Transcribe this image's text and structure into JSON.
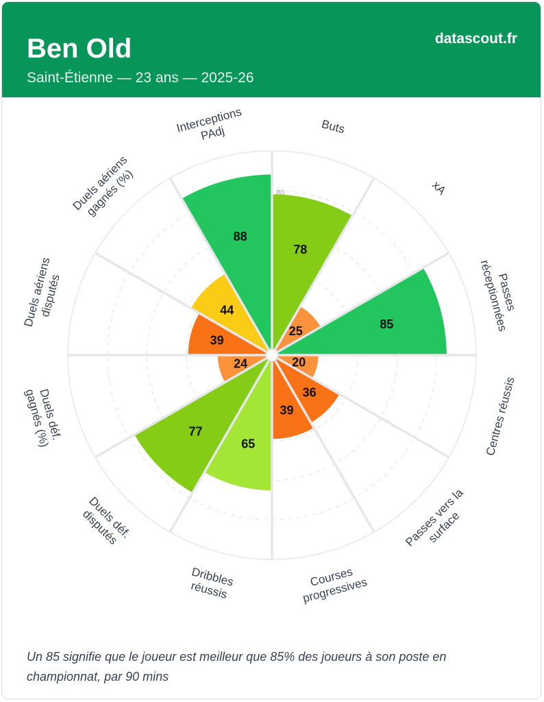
{
  "header": {
    "player_name": "Ben Old",
    "subtitle": "Saint-Étienne — 23 ans — 2025-26",
    "brand": "datascout.fr"
  },
  "chart_data": {
    "type": "radial-bar",
    "rmax": 100,
    "ring_label": "80",
    "gridlines": [
      20,
      40,
      60,
      80
    ],
    "categories": [
      {
        "label": [
          "Buts"
        ],
        "value": 78
      },
      {
        "label": [
          "xA"
        ],
        "value": 25
      },
      {
        "label": [
          "Passes",
          "réceptionnées"
        ],
        "value": 85
      },
      {
        "label": [
          "Centres réussis"
        ],
        "value": 20
      },
      {
        "label": [
          "Passes vers la",
          "surface"
        ],
        "value": 36
      },
      {
        "label": [
          "Courses",
          "progressives"
        ],
        "value": 39
      },
      {
        "label": [
          "Dribbles",
          "réussis"
        ],
        "value": 65
      },
      {
        "label": [
          "Duels déf.",
          "disputés"
        ],
        "value": 77
      },
      {
        "label": [
          "Duels déf.",
          "gagnés (%)"
        ],
        "value": 24
      },
      {
        "label": [
          "Duels aériens",
          "disputés"
        ],
        "value": 39
      },
      {
        "label": [
          "Duels aériens",
          "gagnés (%)"
        ],
        "value": 44
      },
      {
        "label": [
          "Interceptions",
          "PAdj"
        ],
        "value": 88
      }
    ]
  },
  "footnote": "Un 85 signifie que le joueur est meilleur que 85% des joueurs à son poste en championnat, par 90 mins"
}
